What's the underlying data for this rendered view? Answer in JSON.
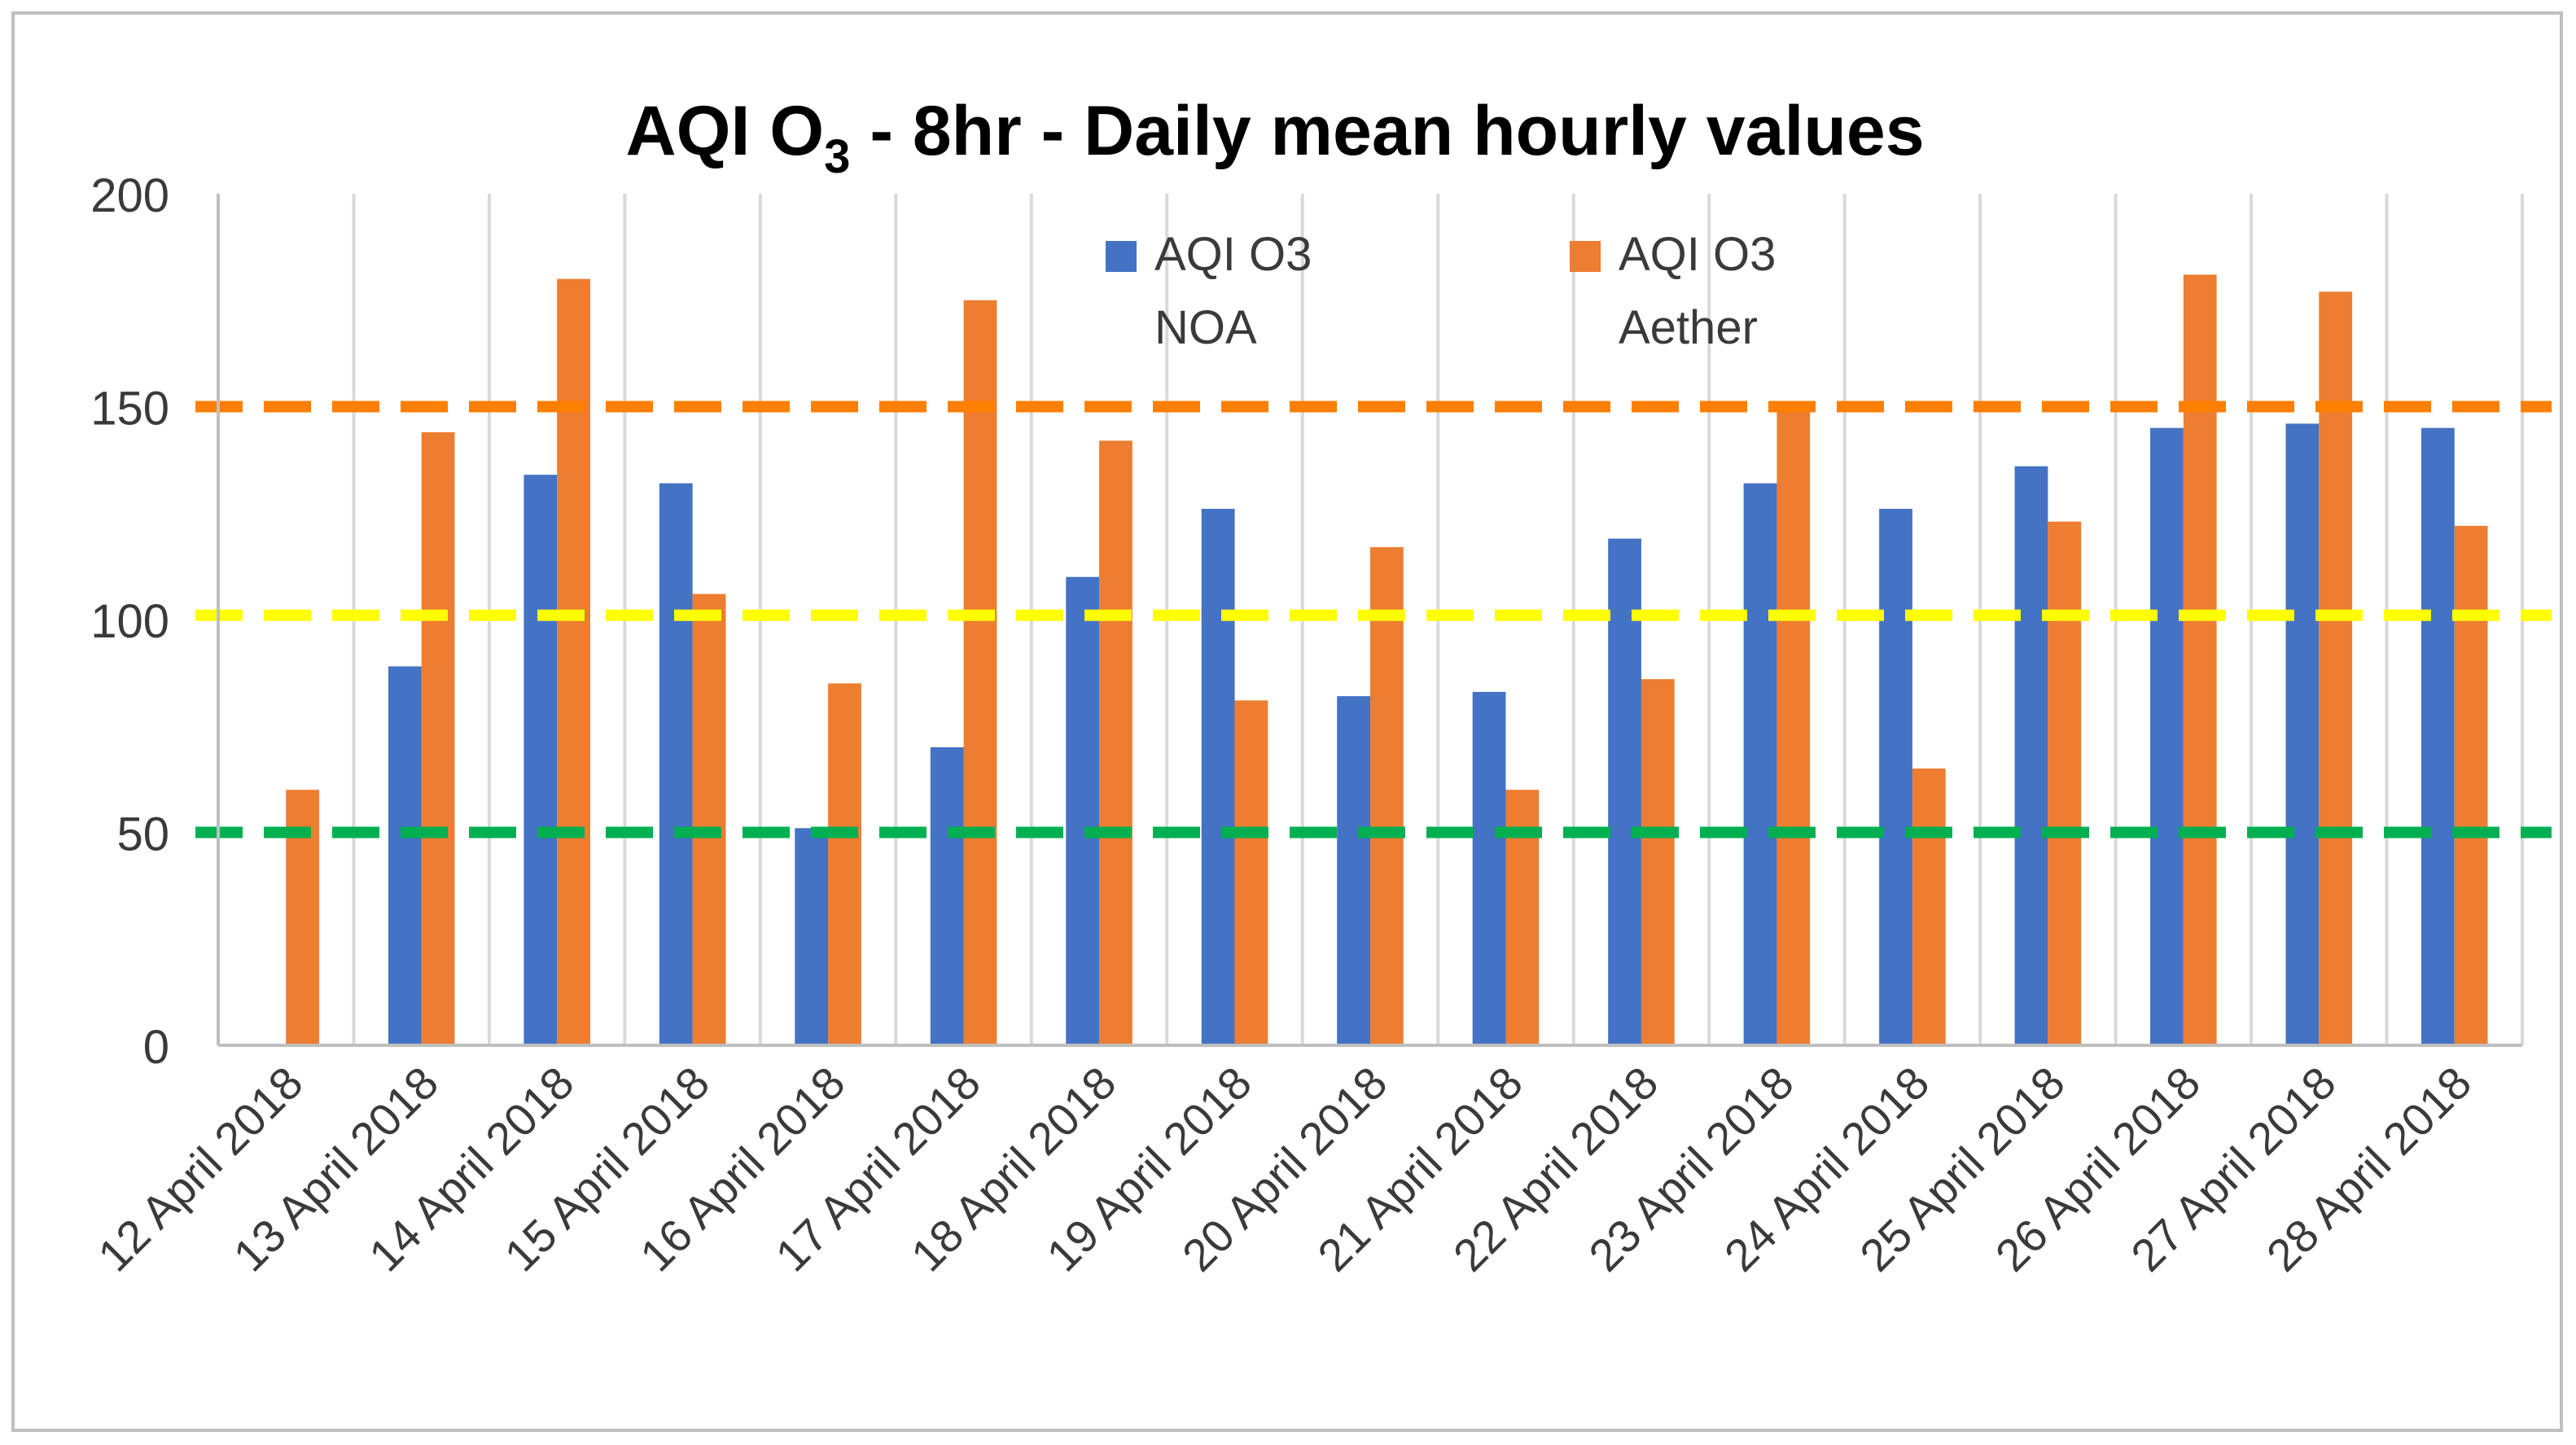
{
  "chart_data": {
    "type": "bar",
    "title_main": "AQI O",
    "title_sub": "3",
    "title_rest": " - 8hr - Daily mean hourly values",
    "categories": [
      "12 April 2018",
      "13 April 2018",
      "14 April 2018",
      "15 April 2018",
      "16 April 2018",
      "17 April 2018",
      "18 April 2018",
      "19 April 2018",
      "20 April 2018",
      "21 April 2018",
      "22 April 2018",
      "23 April 2018",
      "24 April 2018",
      "25 April 2018",
      "26 April 2018",
      "27 April 2018",
      "28 April 2018"
    ],
    "series": [
      {
        "name": "AQI O3 NOA",
        "legend_line1": "AQI O3",
        "legend_line2": "NOA",
        "color": "#4472c4",
        "values": [
          null,
          89,
          134,
          132,
          51,
          70,
          110,
          126,
          82,
          83,
          119,
          132,
          126,
          136,
          145,
          146,
          145
        ]
      },
      {
        "name": "AQI O3 Aether",
        "legend_line1": "AQI O3",
        "legend_line2": "Aether",
        "color": "#ed7d31",
        "values": [
          60,
          144,
          180,
          106,
          85,
          175,
          142,
          81,
          117,
          60,
          86,
          149,
          65,
          123,
          181,
          177,
          122
        ]
      }
    ],
    "reference_lines": [
      {
        "value": 150,
        "color": "#ff7f00"
      },
      {
        "value": 101,
        "color": "#ffff00"
      },
      {
        "value": 50,
        "color": "#00b050"
      }
    ],
    "ylim": [
      0,
      200
    ],
    "yticks": [
      "0",
      "50",
      "100",
      "150",
      "200"
    ],
    "legend_position": "top-center",
    "grid": "vertical"
  }
}
